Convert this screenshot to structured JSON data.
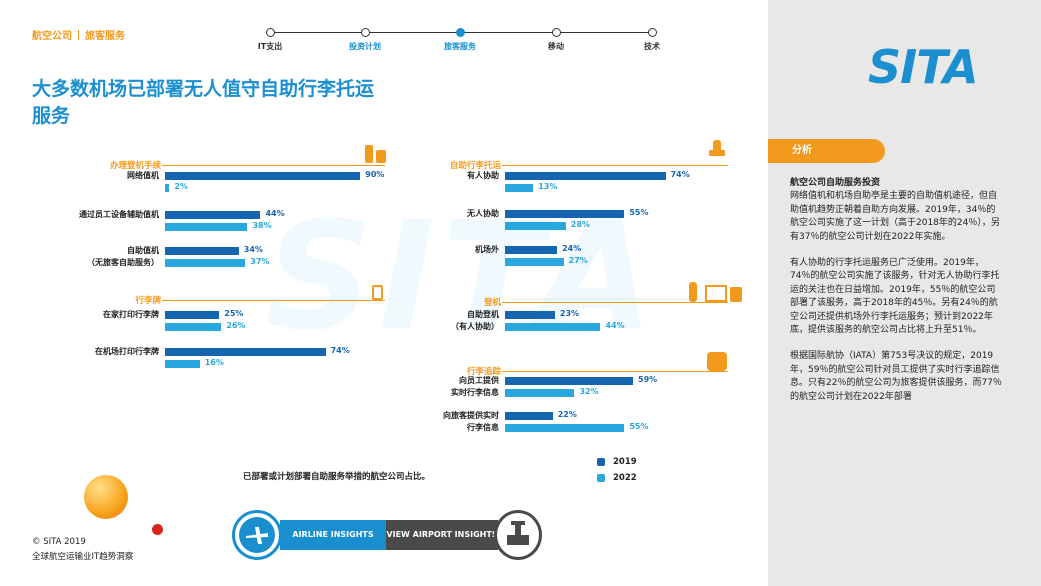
{
  "header": {
    "section": "航空公司",
    "subsection": "旅客服务"
  },
  "nav": [
    "IT支出",
    "投资计划",
    "旅客服务",
    "移动",
    "技术"
  ],
  "title": "大多数机场已部署无人值守自助行李托运\n服务",
  "watermark": "SITA",
  "chart_data": [
    {
      "type": "bar",
      "title": "办理登机手续",
      "categories": [
        "网络值机",
        "通过员工设备辅助值机",
        "自助值机\n（无旅客自助服务）"
      ],
      "series": [
        {
          "name": "2019",
          "color": "#1565b0",
          "values": [
            90,
            44,
            34
          ],
          "value_labels": [
            "90%",
            "44%",
            "34%"
          ]
        },
        {
          "name": "2022",
          "color": "#29a8e0",
          "values": [
            2,
            38,
            37
          ],
          "value_labels": [
            "2%",
            "38%",
            "37%"
          ]
        }
      ]
    },
    {
      "type": "bar",
      "title": "行李牌",
      "categories": [
        "在家打印行李牌",
        "在机场打印行李牌"
      ],
      "series": [
        {
          "color": "#1565b0",
          "values": [
            25,
            74
          ],
          "value_labels": [
            "25%",
            "74%"
          ]
        },
        {
          "color": "#29a8e0",
          "values": [
            26,
            16
          ],
          "value_labels": [
            "26%",
            "16%"
          ]
        }
      ]
    },
    {
      "type": "bar",
      "title": "自助行李托运",
      "categories": [
        "有人协助",
        "无人协助",
        "机场外"
      ],
      "series": [
        {
          "color": "#1565b0",
          "values": [
            74,
            55,
            24
          ],
          "value_labels": [
            "74%",
            "55%",
            "24%"
          ]
        },
        {
          "color": "#29a8e0",
          "values": [
            13,
            28,
            27
          ],
          "value_labels": [
            "13%",
            "28%",
            "27%"
          ]
        }
      ]
    },
    {
      "type": "bar",
      "title": "登机",
      "categories": [
        "自助登机\n（有人协助）"
      ],
      "series": [
        {
          "color": "#1565b0",
          "values": [
            23
          ],
          "value_labels": [
            "23%"
          ]
        },
        {
          "color": "#29a8e0",
          "values": [
            44
          ],
          "value_labels": [
            "44%"
          ]
        }
      ]
    },
    {
      "type": "bar",
      "title": "行李追踪",
      "categories": [
        "向员工提供\n实时行李信息",
        "向旅客提供实时\n行李信息"
      ],
      "series": [
        {
          "color": "#1565b0",
          "values": [
            59,
            22
          ],
          "value_labels": [
            "59%",
            "22%"
          ]
        },
        {
          "color": "#29a8e0",
          "values": [
            32,
            55
          ],
          "value_labels": [
            "32%",
            "55%"
          ]
        }
      ]
    }
  ],
  "note": "已部署或计划部署自助服务举措的航空公司占比。",
  "footer": {
    "copyright": "© SITA 2019",
    "publication": "全球航空运输业IT趋势洞察"
  },
  "buttons": [
    "AIRLINE INSIGHTS",
    "VIEW AIRPORT INSIGHTS"
  ],
  "sidebar": {
    "logo": "SITA",
    "tab": "分析",
    "heading": "航空公司自助服务投资",
    "paragraphs": [
      "网络值机和机场自助亭是主要的自助值机途径，但自助值机趋势正朝着自助方向发展。2019年，34％的航空公司实施了这一计划（高于2018年的24％），另有37％的航空公司计划在2022年实施。",
      "有人协助的行李托运服务已广泛使用。2019年，74％的航空公司实施了该服务，针对无人协助行李托运的关注也在日益增加。2019年，55％的航空公司部署了该服务，高于2018年的45％。另有24％的航空公司还提供机场外行李托运服务；预计到2022年底，提供该服务的航空公司占比将上升至51％。",
      "根据国际航协（IATA）第753号决议的规定，2019年，59％的航空公司针对员工提供了实时行李追踪信息。只有22％的航空公司为旅客提供该服务，而77％的航空公司计划在2022年部署"
    ]
  }
}
